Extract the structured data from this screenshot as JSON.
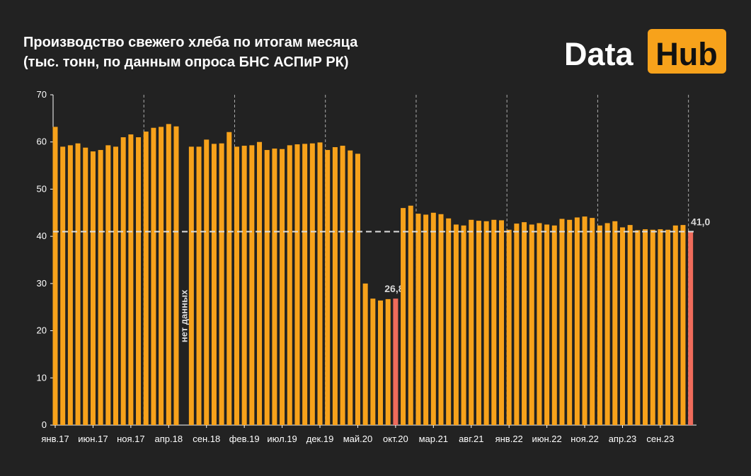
{
  "chart_data": {
    "type": "bar",
    "title": "Производство свежего хлеба по итогам месяца",
    "subtitle": "(тыс. тонн, по данным опроса БНС АСПиР РК)",
    "logo": [
      "Data",
      "Hub"
    ],
    "annotation": "нет данных",
    "categories": [
      "янв.17",
      null,
      null,
      null,
      null,
      "июн.17",
      null,
      null,
      null,
      null,
      "ноя.17",
      null,
      null,
      null,
      null,
      "апр.18",
      null,
      null,
      null,
      null,
      "сен.18",
      null,
      null,
      null,
      null,
      "фев.19",
      null,
      null,
      null,
      null,
      "июл.19",
      null,
      null,
      null,
      null,
      "дек.19",
      null,
      null,
      null,
      null,
      "май.20",
      null,
      null,
      null,
      null,
      "окт.20",
      null,
      null,
      null,
      null,
      "мар.21",
      null,
      null,
      null,
      null,
      "авг.21",
      null,
      null,
      null,
      null,
      "янв.22",
      null,
      null,
      null,
      null,
      "июн.22",
      null,
      null,
      null,
      null,
      "ноя.22",
      null,
      null,
      null,
      null,
      "апр.23",
      null,
      null,
      null,
      null,
      "сен.23",
      null,
      null,
      null,
      null
    ],
    "values": [
      63.2,
      59,
      59.3,
      59.7,
      58.8,
      58,
      58.3,
      59.3,
      59,
      61,
      61.6,
      61,
      62.2,
      63,
      63.2,
      63.8,
      63.3,
      null,
      59,
      59,
      60.5,
      59.6,
      59.7,
      62.1,
      59,
      59.2,
      59.3,
      60,
      58.3,
      58.6,
      58.5,
      59.3,
      59.5,
      59.6,
      59.7,
      59.9,
      58.3,
      58.9,
      59.2,
      58.2,
      57.5,
      30,
      26.8,
      26.4,
      26.7,
      26.8,
      46,
      46.5,
      44.8,
      44.6,
      45,
      44.7,
      43.8,
      42.5,
      42.3,
      43.5,
      43.3,
      43.2,
      43.5,
      43.4,
      41.4,
      42.7,
      43,
      42.5,
      42.8,
      42.5,
      42.3,
      43.7,
      43.5,
      44,
      44.2,
      43.9,
      42.3,
      42.8,
      43.2,
      41.9,
      42.4,
      41.3,
      41.5,
      41.4,
      41.5,
      41.4,
      42.3,
      42.4,
      41
    ],
    "value_labels": [
      null,
      null,
      null,
      null,
      null,
      null,
      null,
      null,
      null,
      null,
      null,
      null,
      null,
      null,
      null,
      null,
      null,
      null,
      null,
      null,
      null,
      null,
      null,
      null,
      null,
      null,
      null,
      null,
      null,
      null,
      null,
      null,
      null,
      null,
      null,
      null,
      null,
      null,
      null,
      null,
      null,
      null,
      null,
      null,
      null,
      "26,8",
      null,
      null,
      null,
      null,
      null,
      null,
      null,
      null,
      null,
      null,
      null,
      null,
      null,
      null,
      null,
      null,
      null,
      null,
      null,
      null,
      null,
      null,
      null,
      null,
      null,
      null,
      null,
      null,
      null,
      null,
      null,
      null,
      null,
      null,
      null,
      null,
      null,
      null,
      "41,0"
    ],
    "color": "#f7a21b",
    "highlight_color": "#ef6b5b",
    "reference_line": 41,
    "ylim": [
      0,
      70
    ],
    "yticks": [
      0,
      10,
      20,
      30,
      40,
      50,
      60,
      70
    ]
  }
}
